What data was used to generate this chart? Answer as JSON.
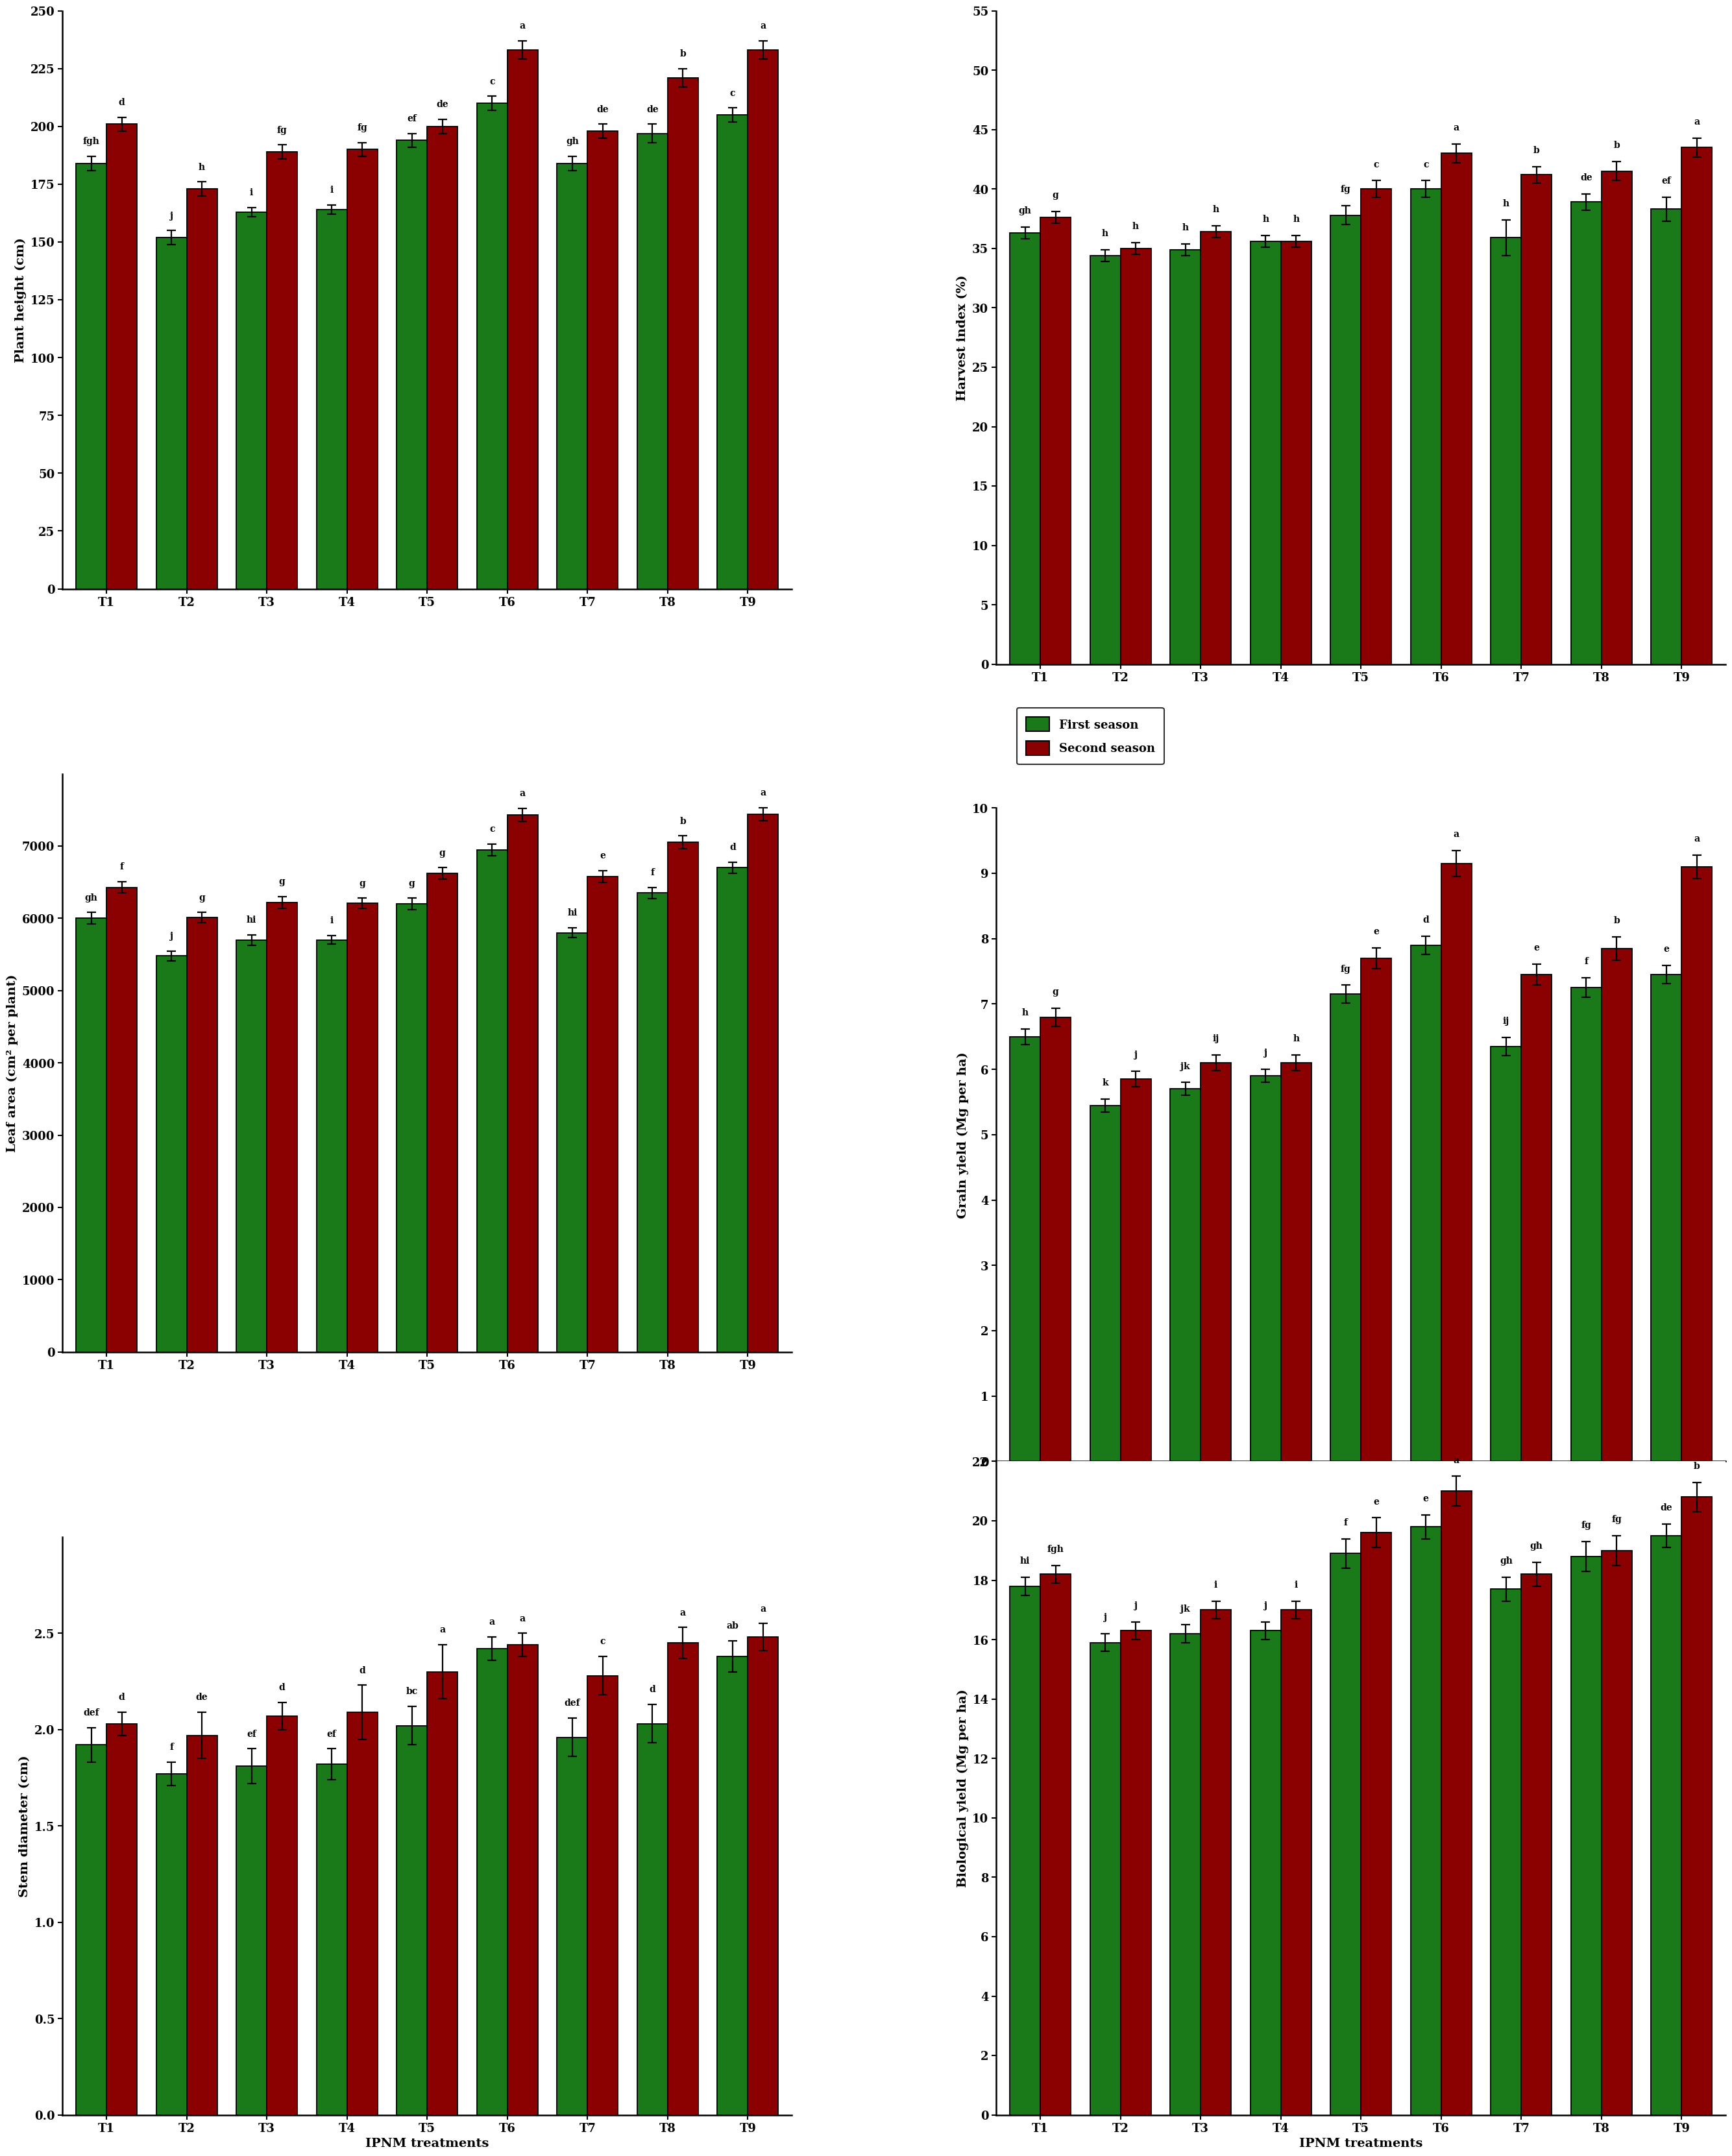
{
  "treatments": [
    "T1",
    "T2",
    "T3",
    "T4",
    "T5",
    "T6",
    "T7",
    "T8",
    "T9"
  ],
  "green_color": "#1a7a1a",
  "red_color": "#8b0000",
  "bar_width": 0.38,
  "plots": {
    "plant_height": {
      "ylabel": "Plant height (cm)",
      "ylim": [
        0,
        250
      ],
      "yticks": [
        0,
        25,
        50,
        75,
        100,
        125,
        150,
        175,
        200,
        225,
        250
      ],
      "green_values": [
        184,
        152,
        163,
        164,
        194,
        210,
        184,
        197,
        205
      ],
      "red_values": [
        201,
        173,
        189,
        190,
        200,
        233,
        198,
        221,
        233
      ],
      "green_errors": [
        3,
        3,
        2,
        2,
        3,
        3,
        3,
        4,
        3
      ],
      "red_errors": [
        3,
        3,
        3,
        3,
        3,
        4,
        3,
        4,
        4
      ],
      "green_labels": [
        "fgh",
        "j",
        "i",
        "i",
        "ef",
        "c",
        "gh",
        "de",
        "c"
      ],
      "red_labels": [
        "d",
        "h",
        "fg",
        "fg",
        "de",
        "a",
        "de",
        "b",
        "a"
      ]
    },
    "leaf_area": {
      "ylabel": "Leaf area (cm² per plant)",
      "ylim": [
        0,
        8000
      ],
      "yticks": [
        0,
        1000,
        2000,
        3000,
        4000,
        5000,
        6000,
        7000
      ],
      "green_values": [
        6000,
        5480,
        5700,
        5700,
        6200,
        6950,
        5800,
        6350,
        6700
      ],
      "red_values": [
        6430,
        6010,
        6220,
        6210,
        6620,
        7430,
        6580,
        7050,
        7440
      ],
      "green_errors": [
        80,
        70,
        70,
        60,
        80,
        80,
        70,
        80,
        80
      ],
      "red_errors": [
        80,
        70,
        80,
        70,
        80,
        90,
        80,
        90,
        90
      ],
      "green_labels": [
        "gh",
        "j",
        "hi",
        "i",
        "g",
        "c",
        "hi",
        "f",
        "d"
      ],
      "red_labels": [
        "f",
        "g",
        "g",
        "g",
        "g",
        "a",
        "e",
        "b",
        "a"
      ]
    },
    "stem_diameter": {
      "ylabel": "Stem diameter (cm)",
      "ylim": [
        0,
        3.0
      ],
      "yticks": [
        0.0,
        0.5,
        1.0,
        1.5,
        2.0,
        2.5
      ],
      "green_values": [
        1.92,
        1.77,
        1.81,
        1.82,
        2.02,
        2.42,
        1.96,
        2.03,
        2.38
      ],
      "red_values": [
        2.03,
        1.97,
        2.07,
        2.09,
        2.3,
        2.44,
        2.28,
        2.45,
        2.48
      ],
      "green_errors": [
        0.09,
        0.06,
        0.09,
        0.08,
        0.1,
        0.06,
        0.1,
        0.1,
        0.08
      ],
      "red_errors": [
        0.06,
        0.12,
        0.07,
        0.14,
        0.14,
        0.06,
        0.1,
        0.08,
        0.07
      ],
      "green_labels": [
        "def",
        "f",
        "ef",
        "ef",
        "bc",
        "a",
        "def",
        "d",
        "ab"
      ],
      "red_labels": [
        "d",
        "de",
        "d",
        "d",
        "a",
        "a",
        "c",
        "a",
        "a"
      ]
    },
    "harvest_index": {
      "ylabel": "Harvest index (%)",
      "ylim": [
        0,
        55
      ],
      "yticks": [
        0,
        5,
        10,
        15,
        20,
        25,
        30,
        35,
        40,
        45,
        50,
        55
      ],
      "green_values": [
        36.3,
        34.4,
        34.9,
        35.6,
        37.8,
        40.0,
        35.9,
        38.9,
        38.3
      ],
      "red_values": [
        37.6,
        35.0,
        36.4,
        35.6,
        40.0,
        43.0,
        41.2,
        41.5,
        43.5
      ],
      "green_errors": [
        0.5,
        0.5,
        0.5,
        0.5,
        0.8,
        0.7,
        1.5,
        0.7,
        1.0
      ],
      "red_errors": [
        0.5,
        0.5,
        0.5,
        0.5,
        0.7,
        0.8,
        0.7,
        0.8,
        0.8
      ],
      "green_labels": [
        "gh",
        "h",
        "h",
        "h",
        "fg",
        "c",
        "h",
        "de",
        "ef"
      ],
      "red_labels": [
        "g",
        "h",
        "h",
        "h",
        "c",
        "a",
        "b",
        "b",
        "a"
      ]
    },
    "grain_yield": {
      "ylabel": "Grain yield (Mg per ha)",
      "ylim": [
        0,
        10
      ],
      "yticks": [
        0,
        1,
        2,
        3,
        4,
        5,
        6,
        7,
        8,
        9,
        10
      ],
      "green_values": [
        6.5,
        5.45,
        5.7,
        5.9,
        7.15,
        7.9,
        6.35,
        7.25,
        7.45
      ],
      "red_values": [
        6.8,
        5.85,
        6.1,
        6.1,
        7.7,
        9.15,
        7.45,
        7.85,
        9.1
      ],
      "green_errors": [
        0.12,
        0.1,
        0.1,
        0.1,
        0.14,
        0.14,
        0.14,
        0.15,
        0.14
      ],
      "red_errors": [
        0.14,
        0.12,
        0.12,
        0.12,
        0.16,
        0.2,
        0.16,
        0.18,
        0.18
      ],
      "green_labels": [
        "h",
        "k",
        "jk",
        "j",
        "fg",
        "d",
        "ij",
        "f",
        "e"
      ],
      "red_labels": [
        "g",
        "j",
        "ij",
        "h",
        "e",
        "a",
        "e",
        "b",
        "a"
      ]
    },
    "biological_yield": {
      "ylabel": "Biological yield (Mg per ha)",
      "ylim": [
        0,
        22
      ],
      "yticks": [
        0,
        2,
        4,
        6,
        8,
        10,
        12,
        14,
        16,
        18,
        20,
        22
      ],
      "green_values": [
        17.8,
        15.9,
        16.2,
        16.3,
        18.9,
        19.8,
        17.7,
        18.8,
        19.5
      ],
      "red_values": [
        18.2,
        16.3,
        17.0,
        17.0,
        19.6,
        21.0,
        18.2,
        19.0,
        20.8
      ],
      "green_errors": [
        0.3,
        0.3,
        0.3,
        0.3,
        0.5,
        0.4,
        0.4,
        0.5,
        0.4
      ],
      "red_errors": [
        0.3,
        0.3,
        0.3,
        0.3,
        0.5,
        0.5,
        0.4,
        0.5,
        0.5
      ],
      "green_labels": [
        "hi",
        "j",
        "jk",
        "j",
        "f",
        "e",
        "gh",
        "fg",
        "de"
      ],
      "red_labels": [
        "fgh",
        "j",
        "i",
        "i",
        "e",
        "a",
        "gh",
        "fg",
        "b"
      ]
    }
  },
  "legend": {
    "first_season": "First season",
    "second_season": "Second season"
  },
  "xlabel": "IPNM treatments",
  "label_fontsize": 14,
  "tick_fontsize": 13,
  "annot_fontsize": 10
}
